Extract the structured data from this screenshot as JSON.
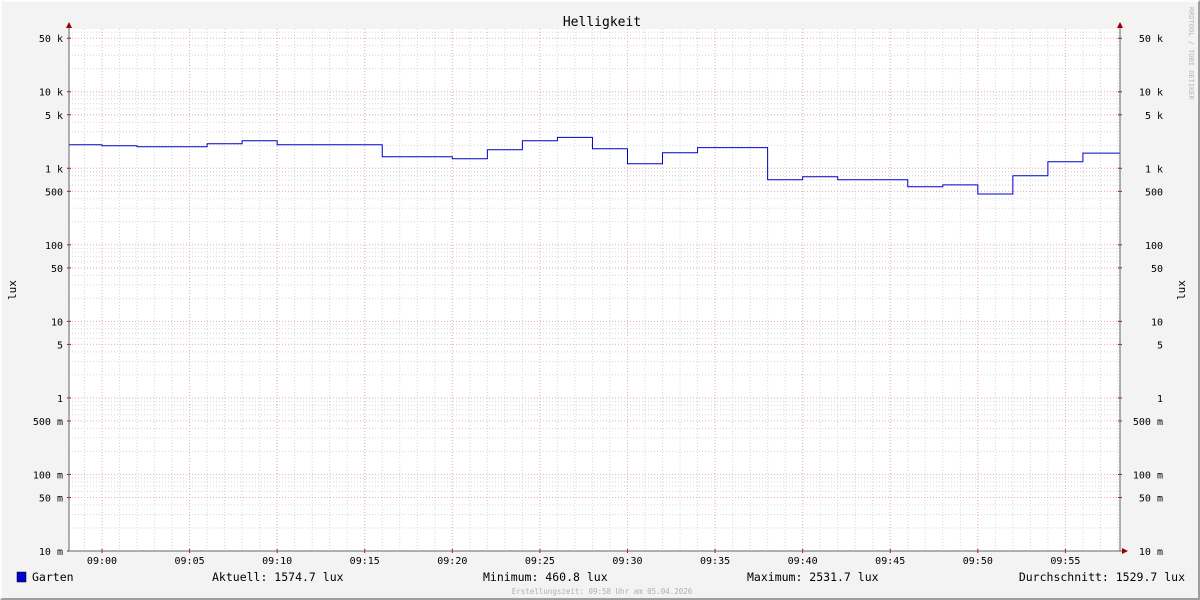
{
  "chart_data": {
    "type": "line",
    "title": "Helligkeit",
    "ylabel": "lux",
    "ylabel_right": "lux",
    "y_scale": "log",
    "ylim": [
      0.01,
      66000
    ],
    "y_ticks": [
      {
        "value": 50000,
        "label": "50 k"
      },
      {
        "value": 10000,
        "label": "10 k"
      },
      {
        "value": 5000,
        "label": "5 k"
      },
      {
        "value": 1000,
        "label": "1 k"
      },
      {
        "value": 500,
        "label": "500"
      },
      {
        "value": 100,
        "label": "100"
      },
      {
        "value": 50,
        "label": "50"
      },
      {
        "value": 10,
        "label": "10"
      },
      {
        "value": 5,
        "label": "5"
      },
      {
        "value": 1,
        "label": "1"
      },
      {
        "value": 0.5,
        "label": "500 m"
      },
      {
        "value": 0.1,
        "label": "100 m"
      },
      {
        "value": 0.05,
        "label": "50 m"
      },
      {
        "value": 0.01,
        "label": "10 m"
      }
    ],
    "xlim": [
      "08:58:07",
      "09:58:07"
    ],
    "x_ticks": [
      "09:00",
      "09:05",
      "09:10",
      "09:15",
      "09:20",
      "09:25",
      "09:30",
      "09:35",
      "09:40",
      "09:45",
      "09:50",
      "09:55"
    ],
    "grid": true,
    "step": true,
    "series": [
      {
        "name": "Garten",
        "color": "#0000cc",
        "x": [
          "08:58",
          "09:00",
          "09:02",
          "09:04",
          "09:06",
          "09:08",
          "09:10",
          "09:12",
          "09:14",
          "09:16",
          "09:18",
          "09:20",
          "09:22",
          "09:24",
          "09:26",
          "09:28",
          "09:30",
          "09:32",
          "09:34",
          "09:36",
          "09:38",
          "09:40",
          "09:42",
          "09:44",
          "09:46",
          "09:48",
          "09:50",
          "09:52",
          "09:54",
          "09:56"
        ],
        "values": [
          2028,
          1968,
          1910,
          1910,
          2090,
          2287,
          2028,
          2028,
          2028,
          1413,
          1413,
          1330,
          1746,
          2287,
          2531.7,
          1800,
          1145,
          1595,
          1860,
          1860,
          707,
          776,
          707,
          707,
          573,
          606,
          460.8,
          800,
          1216,
          1574.7
        ]
      }
    ],
    "legend": {
      "position": "bottom",
      "swatch_color": "#0000cc",
      "name": "Garten",
      "current": "Aktuell: 1574.7 lux",
      "minimum": "Minimum: 460.8 lux",
      "maximum": "Maximum: 2531.7 lux",
      "average": "Durchschnitt: 1529.7 lux"
    },
    "footer": "Erstellungszeit: 09:58 Uhr am 05.04.2026",
    "watermark": "RRDTOOL / TOBI OETIKER"
  }
}
